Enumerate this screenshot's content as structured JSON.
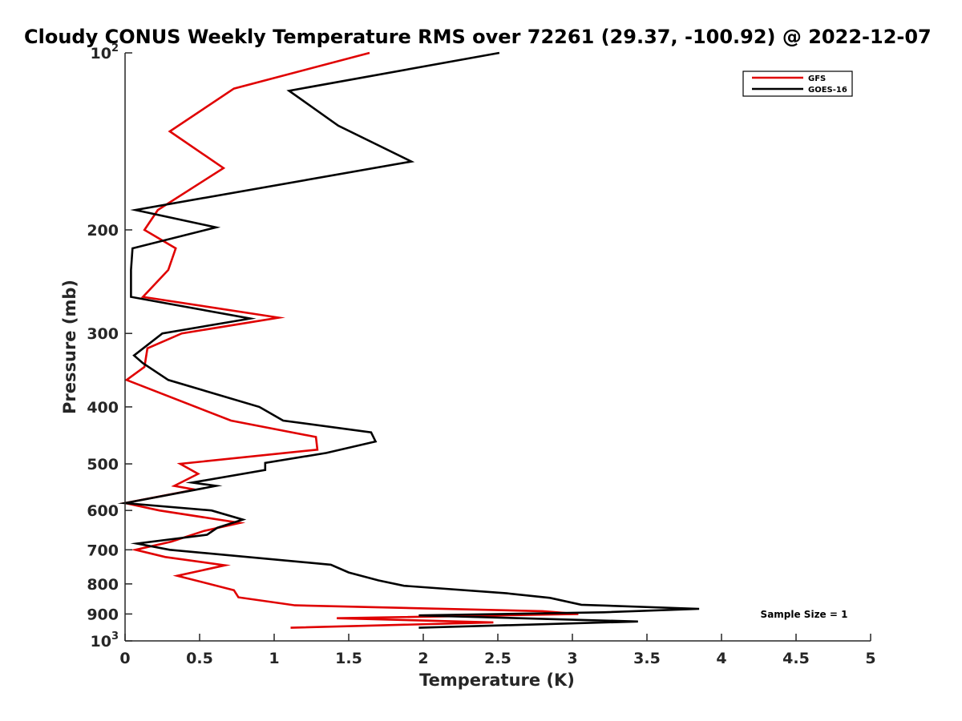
{
  "chart_data": {
    "type": "line",
    "title": "Cloudy CONUS Weekly Temperature RMS over 72261 (29.37, -100.92) @ 2022-12-07",
    "xlabel": "Temperature (K)",
    "ylabel": "Pressure (mb)",
    "xlim": [
      0,
      5
    ],
    "ylim": [
      100,
      1000
    ],
    "y_scale": "log",
    "y_reversed": true,
    "x_ticks": [
      0,
      0.5,
      1,
      1.5,
      2,
      2.5,
      3,
      3.5,
      4,
      4.5,
      5
    ],
    "x_tick_labels": [
      "0",
      "0.5",
      "1",
      "1.5",
      "2",
      "2.5",
      "3",
      "3.5",
      "4",
      "4.5",
      "5"
    ],
    "y_ticks": [
      100,
      200,
      300,
      400,
      500,
      600,
      700,
      800,
      900,
      1000
    ],
    "y_tick_labels": [
      {
        "base": "10",
        "exp": "2"
      },
      {
        "base": "200",
        "exp": ""
      },
      {
        "base": "300",
        "exp": ""
      },
      {
        "base": "400",
        "exp": ""
      },
      {
        "base": "500",
        "exp": ""
      },
      {
        "base": "600",
        "exp": ""
      },
      {
        "base": "700",
        "exp": ""
      },
      {
        "base": "800",
        "exp": ""
      },
      {
        "base": "900",
        "exp": ""
      },
      {
        "base": "10",
        "exp": "3"
      }
    ],
    "grid": false,
    "legend_position": "top-right",
    "annotation": "Sample Size = 1",
    "series": [
      {
        "name": "GFS",
        "color": "#e00000",
        "points": [
          [
            1.64,
            100
          ],
          [
            0.73,
            115
          ],
          [
            0.3,
            136
          ],
          [
            0.66,
            157
          ],
          [
            0.22,
            185
          ],
          [
            0.13,
            200
          ],
          [
            0.34,
            215
          ],
          [
            0.29,
            234
          ],
          [
            0.12,
            260
          ],
          [
            1.03,
            282
          ],
          [
            0.38,
            300
          ],
          [
            0.15,
            318
          ],
          [
            0.13,
            342
          ],
          [
            0.01,
            360
          ],
          [
            0.71,
            422
          ],
          [
            1.28,
            450
          ],
          [
            1.29,
            473
          ],
          [
            0.37,
            500
          ],
          [
            0.49,
            520
          ],
          [
            0.33,
            545
          ],
          [
            0.47,
            553
          ],
          [
            0.0,
            583
          ],
          [
            0.23,
            600
          ],
          [
            0.77,
            630
          ],
          [
            0.53,
            650
          ],
          [
            0.31,
            678
          ],
          [
            0.07,
            700
          ],
          [
            0.27,
            720
          ],
          [
            0.67,
            744
          ],
          [
            0.35,
            775
          ],
          [
            0.73,
            820
          ],
          [
            0.76,
            843
          ],
          [
            1.14,
            870
          ],
          [
            2.8,
            890
          ],
          [
            3.04,
            900
          ],
          [
            1.42,
            915
          ],
          [
            2.47,
            930
          ],
          [
            1.11,
            950
          ]
        ]
      },
      {
        "name": "GOES-16",
        "color": "#000000",
        "points": [
          [
            2.51,
            100
          ],
          [
            1.1,
            116
          ],
          [
            1.43,
            133
          ],
          [
            1.92,
            153
          ],
          [
            0.07,
            185
          ],
          [
            0.61,
            198
          ],
          [
            0.05,
            215
          ],
          [
            0.04,
            234
          ],
          [
            0.04,
            260
          ],
          [
            0.84,
            283
          ],
          [
            0.25,
            300
          ],
          [
            0.06,
            327
          ],
          [
            0.12,
            337
          ],
          [
            0.29,
            360
          ],
          [
            0.9,
            400
          ],
          [
            1.06,
            422
          ],
          [
            1.65,
            442
          ],
          [
            1.68,
            458
          ],
          [
            1.35,
            479
          ],
          [
            0.94,
            498
          ],
          [
            0.94,
            512
          ],
          [
            0.45,
            538
          ],
          [
            0.61,
            545
          ],
          [
            0.0,
            583
          ],
          [
            0.58,
            600
          ],
          [
            0.79,
            622
          ],
          [
            0.62,
            642
          ],
          [
            0.55,
            660
          ],
          [
            0.08,
            683
          ],
          [
            0.3,
            700
          ],
          [
            1.38,
            742
          ],
          [
            1.5,
            765
          ],
          [
            1.7,
            789
          ],
          [
            1.87,
            806
          ],
          [
            2.56,
            830
          ],
          [
            2.85,
            845
          ],
          [
            3.06,
            868
          ],
          [
            3.85,
            882
          ],
          [
            3.21,
            894
          ],
          [
            1.97,
            905
          ],
          [
            3.44,
            927
          ],
          [
            1.97,
            950
          ]
        ]
      }
    ]
  }
}
